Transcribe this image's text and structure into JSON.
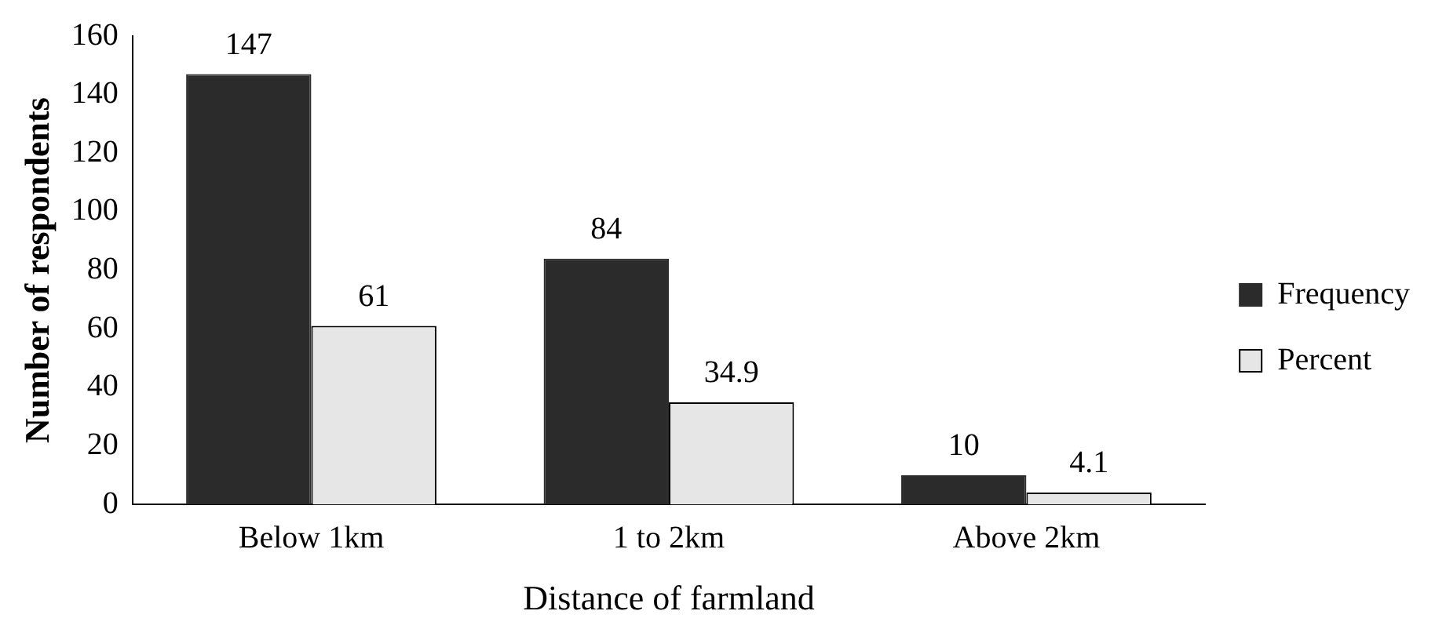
{
  "chart_data": {
    "type": "bar",
    "xlabel": "Distance of farmland",
    "ylabel": "Number of respondents",
    "categories": [
      "Below 1km",
      "1 to 2km",
      "Above 2km"
    ],
    "series": [
      {
        "name": "Frequency",
        "color": "#2b2b2b",
        "values": [
          147,
          84,
          10
        ]
      },
      {
        "name": "Percent",
        "color": "#e6e6e6",
        "values": [
          61,
          34.9,
          4.1
        ]
      }
    ],
    "ylim": [
      0,
      160
    ],
    "yticks": [
      0,
      20,
      40,
      60,
      80,
      100,
      120,
      140,
      160
    ],
    "grid": false,
    "legend": "right",
    "data_labels": true
  }
}
